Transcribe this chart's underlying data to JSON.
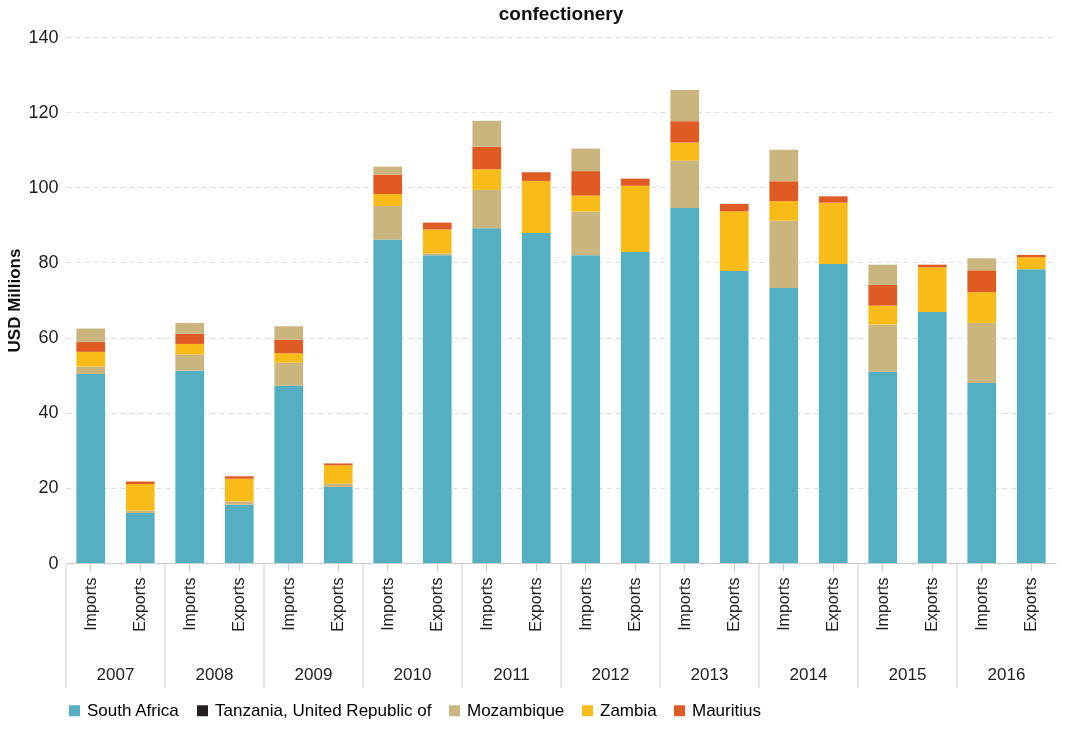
{
  "chart_data": {
    "type": "bar",
    "title": "confectionery",
    "ylabel": "USD Millions",
    "stacked": true,
    "categories": [
      "Imports",
      "Exports",
      "Imports",
      "Exports",
      "Imports",
      "Exports",
      "Imports",
      "Exports",
      "Imports",
      "Exports",
      "Imports",
      "Exports",
      "Imports",
      "Exports",
      "Imports",
      "Exports",
      "Imports",
      "Exports",
      "Imports",
      "Exports"
    ],
    "annotations": [
      "2007",
      "2008",
      "2009",
      "2010",
      "2011",
      "2012",
      "2013",
      "2014",
      "2015",
      "2016"
    ],
    "series": [
      {
        "name": "South Africa",
        "color": "#53afc1",
        "values": [
          50.3,
          13.3,
          51.2,
          15.5,
          47.2,
          20.2,
          86.1,
          81.9,
          89.1,
          87.8,
          81.9,
          82.8,
          94.5,
          77.7,
          73.2,
          79.6,
          50.9,
          66.8,
          47.9,
          78.2
        ]
      },
      {
        "name": "Tanzania, United Republic of",
        "color": "#231f20",
        "values": [
          0,
          0,
          0,
          0,
          0,
          0,
          0,
          0,
          0,
          0,
          0,
          0,
          0,
          0,
          0,
          0,
          0,
          0,
          0,
          0
        ]
      },
      {
        "name": "Mozambique",
        "color": "#cbb57f",
        "values": [
          2.0,
          0.7,
          4.3,
          0.9,
          6.1,
          0.9,
          8.9,
          0.5,
          10.2,
          0,
          11.6,
          0,
          12.6,
          0,
          17.9,
          0,
          12.6,
          0,
          16.0,
          0
        ]
      },
      {
        "name": "Zambia",
        "color": "#f8bb18",
        "values": [
          3.9,
          7.0,
          2.8,
          6.0,
          2.5,
          4.9,
          3.2,
          6.4,
          5.5,
          13.9,
          4.3,
          17.6,
          4.8,
          15.9,
          5.2,
          16.3,
          5.0,
          11.9,
          8.2,
          3.2
        ]
      },
      {
        "name": "Mauritius",
        "color": "#e05a24",
        "values": [
          2.6,
          0.7,
          2.7,
          0.7,
          3.6,
          0.5,
          5.2,
          1.8,
          6.0,
          2.3,
          6.5,
          1.9,
          5.7,
          2.0,
          5.3,
          1.7,
          5.5,
          0.7,
          5.8,
          0.6
        ]
      },
      {
        "color": "#cbb57f",
        "values": [
          3.6,
          0,
          2.9,
          0,
          3.6,
          0,
          2.1,
          0,
          6.9,
          0,
          6.0,
          0,
          8.3,
          0,
          8.4,
          0,
          5.4,
          0,
          3.2,
          0
        ]
      }
    ],
    "ylim": [
      0,
      140
    ],
    "yticks": [
      0,
      20,
      40,
      60,
      80,
      100,
      120,
      140
    ],
    "grid": "y",
    "legend": "bottom"
  }
}
